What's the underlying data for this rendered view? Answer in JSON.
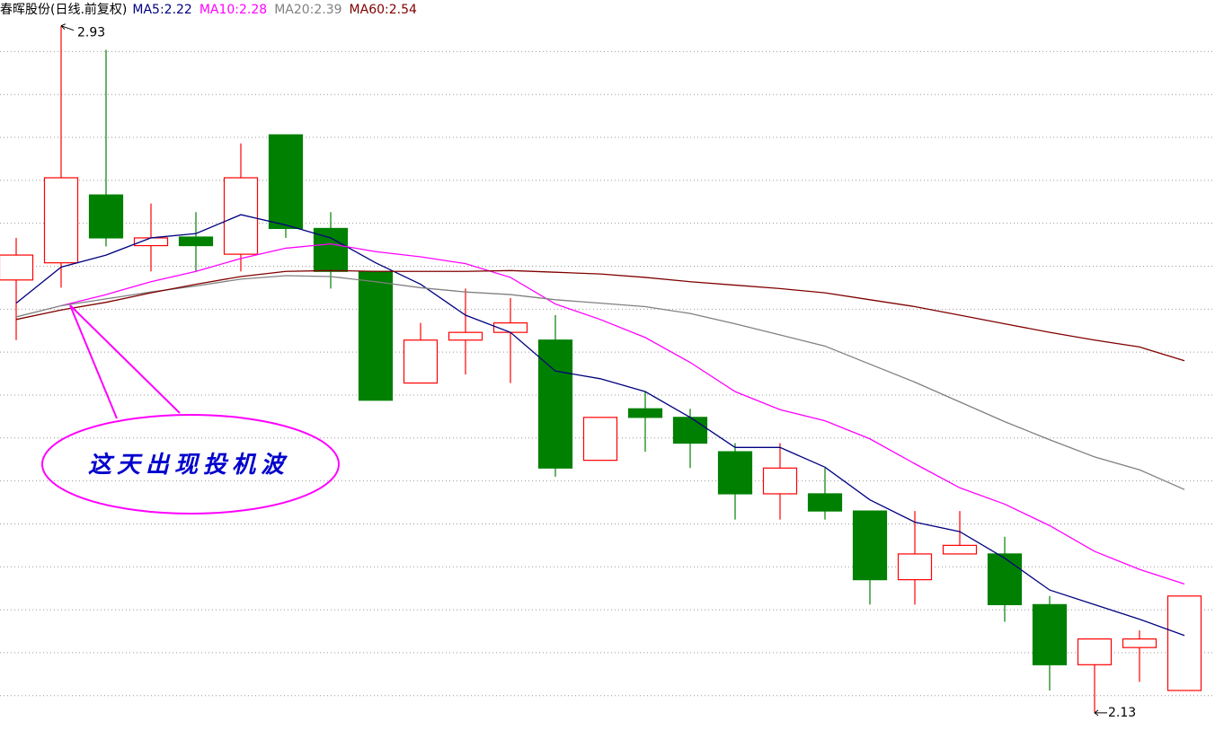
{
  "chart_data": {
    "type": "candlestick",
    "title": "春晖股份(日线.前复权)",
    "up_color": "#ff0000",
    "down_color": "#008000",
    "candles": {
      "open": [
        2.634,
        2.654,
        2.733,
        2.674,
        2.684,
        2.664,
        2.803,
        2.694,
        2.644,
        2.514,
        2.564,
        2.573,
        2.564,
        2.424,
        2.484,
        2.474,
        2.434,
        2.385,
        2.385,
        2.365,
        2.285,
        2.315,
        2.315,
        2.256,
        2.186,
        2.206,
        2.156
      ],
      "high": [
        2.683,
        2.93,
        2.902,
        2.723,
        2.713,
        2.793,
        2.803,
        2.713,
        2.644,
        2.584,
        2.624,
        2.613,
        2.593,
        2.474,
        2.504,
        2.484,
        2.444,
        2.444,
        2.415,
        2.365,
        2.365,
        2.365,
        2.335,
        2.266,
        2.216,
        2.226,
        2.266
      ],
      "low": [
        2.564,
        2.625,
        2.673,
        2.644,
        2.644,
        2.644,
        2.683,
        2.624,
        2.494,
        2.514,
        2.524,
        2.514,
        2.405,
        2.424,
        2.434,
        2.415,
        2.355,
        2.355,
        2.355,
        2.256,
        2.256,
        2.315,
        2.236,
        2.156,
        2.13,
        2.166,
        2.156
      ],
      "close": [
        2.663,
        2.753,
        2.683,
        2.683,
        2.674,
        2.753,
        2.694,
        2.644,
        2.494,
        2.564,
        2.573,
        2.584,
        2.415,
        2.474,
        2.474,
        2.444,
        2.385,
        2.415,
        2.365,
        2.285,
        2.315,
        2.325,
        2.256,
        2.186,
        2.216,
        2.216,
        2.266
      ]
    },
    "series": [
      {
        "name": "MA5:2.22",
        "color": "#000080",
        "values": [
          2.607,
          2.649,
          2.663,
          2.683,
          2.688,
          2.71,
          2.698,
          2.683,
          2.654,
          2.629,
          2.593,
          2.573,
          2.528,
          2.519,
          2.504,
          2.474,
          2.439,
          2.439,
          2.416,
          2.378,
          2.352,
          2.341,
          2.31,
          2.273,
          2.256,
          2.239,
          2.22
        ]
      },
      {
        "name": "MA10:2.28",
        "color": "#ff00ff",
        "values": [
          null,
          2.604,
          2.617,
          2.632,
          2.644,
          2.659,
          2.671,
          2.676,
          2.667,
          2.661,
          2.653,
          2.637,
          2.606,
          2.588,
          2.567,
          2.538,
          2.504,
          2.483,
          2.47,
          2.449,
          2.42,
          2.392,
          2.373,
          2.348,
          2.318,
          2.297,
          2.28
        ]
      },
      {
        "name": "MA20:2.39",
        "color": "#808080",
        "values": [
          2.591,
          2.604,
          2.612,
          2.62,
          2.627,
          2.635,
          2.639,
          2.638,
          2.632,
          2.625,
          2.62,
          2.617,
          2.611,
          2.607,
          2.603,
          2.595,
          2.583,
          2.57,
          2.557,
          2.536,
          2.515,
          2.492,
          2.469,
          2.448,
          2.428,
          2.413,
          2.39
        ]
      },
      {
        "name": "MA60:2.54",
        "color": "#800000",
        "values": [
          2.588,
          2.599,
          2.608,
          2.619,
          2.629,
          2.638,
          2.644,
          2.645,
          2.644,
          2.644,
          2.644,
          2.645,
          2.643,
          2.641,
          2.637,
          2.632,
          2.628,
          2.624,
          2.619,
          2.611,
          2.603,
          2.593,
          2.583,
          2.573,
          2.564,
          2.556,
          2.54
        ]
      }
    ],
    "max_label": "2.93",
    "min_label": "2.13",
    "annotation": "这天出现投机波",
    "ylim": [
      2.11,
      2.96
    ],
    "yticks": [
      2.15,
      2.2,
      2.25,
      2.3,
      2.35,
      2.4,
      2.45,
      2.5,
      2.55,
      2.6,
      2.65,
      2.7,
      2.75,
      2.8,
      2.85,
      2.9
    ],
    "grid": true
  }
}
